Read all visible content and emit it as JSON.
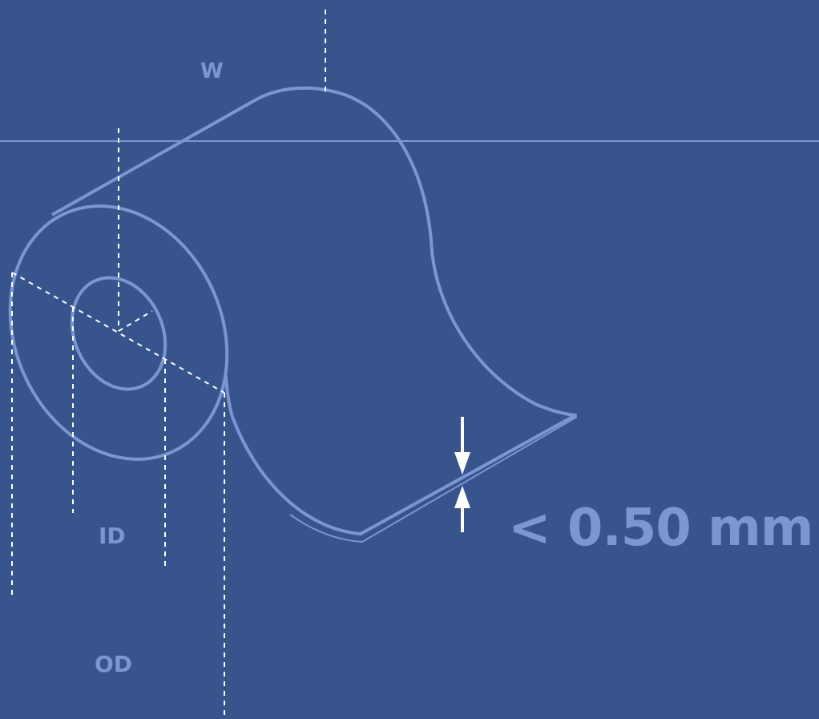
{
  "labels": {
    "width": "W",
    "inner_diameter": "ID",
    "outer_diameter": "OD",
    "thickness": "< 0.50 mm"
  },
  "colors": {
    "background": "#38548d",
    "line": "#7b96d3",
    "dimension": "#ffffff"
  }
}
